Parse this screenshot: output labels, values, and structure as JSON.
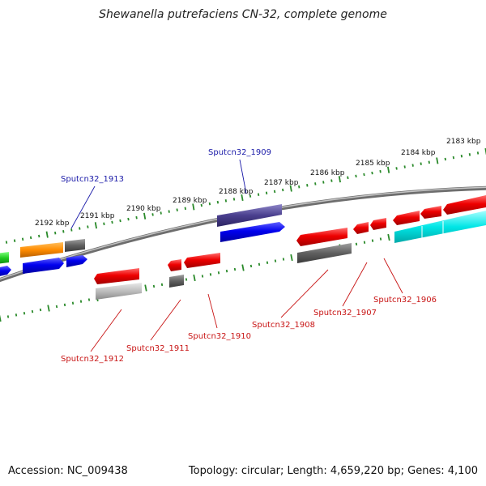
{
  "title": "Shewanella putrefaciens CN-32, complete genome",
  "footer": {
    "accession": "Accession: NC_009438",
    "summary": "Topology: circular; Length: 4,659,220 bp; Genes: 4,100"
  },
  "colors": {
    "backbone": "#888888",
    "ticks": "#2a8a2a",
    "forward_label": "#1a1aa8",
    "reverse_label": "#c81414"
  },
  "kbp_labels": [
    "2192 kbp",
    "2191 kbp",
    "2190 kbp",
    "2189 kbp",
    "2188 kbp",
    "2187 kbp",
    "2186 kbp",
    "2185 kbp",
    "2184 kbp",
    "2183 kbp"
  ],
  "gene_labels": [
    "Sputcn32_1913",
    "Sputcn32_1909",
    "Sputcn32_1912",
    "Sputcn32_1911",
    "Sputcn32_1910",
    "Sputcn32_1908",
    "Sputcn32_1907",
    "Sputcn32_1906"
  ]
}
